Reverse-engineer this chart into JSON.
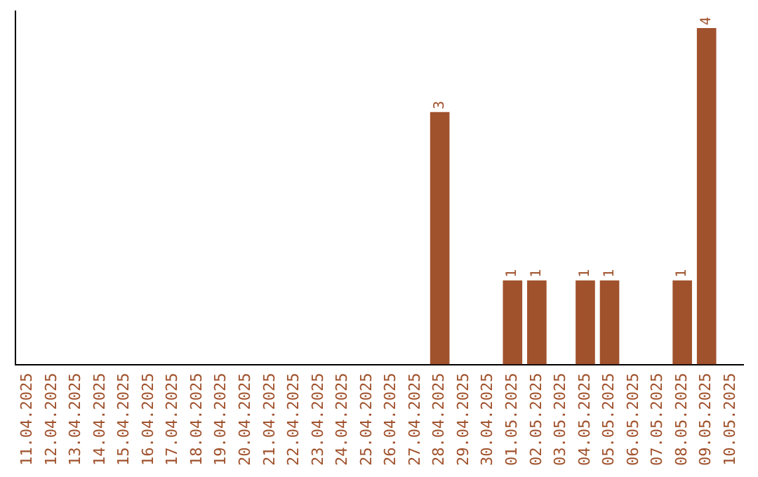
{
  "chart_data": {
    "type": "bar",
    "categories": [
      "11.04.2025",
      "12.04.2025",
      "13.04.2025",
      "14.04.2025",
      "15.04.2025",
      "16.04.2025",
      "17.04.2025",
      "18.04.2025",
      "19.04.2025",
      "20.04.2025",
      "21.04.2025",
      "22.04.2025",
      "23.04.2025",
      "24.04.2025",
      "25.04.2025",
      "26.04.2025",
      "27.04.2025",
      "28.04.2025",
      "29.04.2025",
      "30.04.2025",
      "01.05.2025",
      "02.05.2025",
      "03.05.2025",
      "04.05.2025",
      "05.05.2025",
      "06.05.2025",
      "07.05.2025",
      "08.05.2025",
      "09.05.2025",
      "10.05.2025"
    ],
    "values": [
      null,
      null,
      null,
      null,
      null,
      null,
      null,
      null,
      null,
      null,
      null,
      null,
      null,
      null,
      null,
      null,
      null,
      3,
      null,
      null,
      1,
      1,
      null,
      1,
      1,
      null,
      null,
      1,
      4,
      null
    ],
    "data_labels": true,
    "ylim": [
      0,
      4.2
    ],
    "color": "#a0522d",
    "tick_labels": "x",
    "grid": false,
    "legend": false
  }
}
